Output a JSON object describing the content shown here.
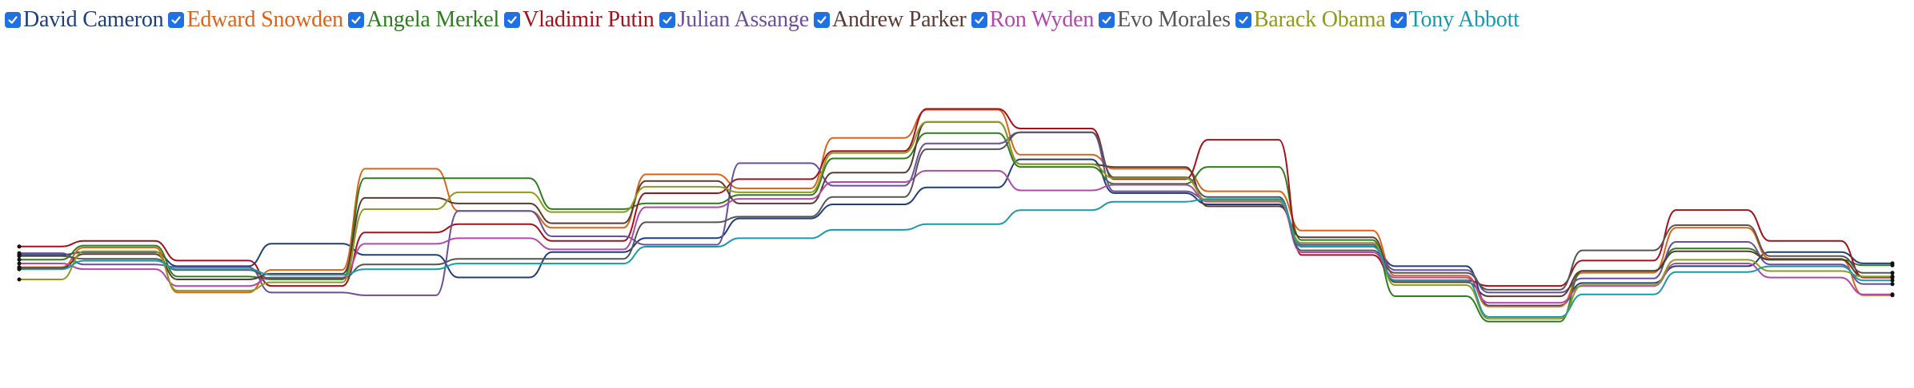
{
  "legend": {
    "items": [
      {
        "label": "David Cameron",
        "color": "#1f3f77",
        "checked": true
      },
      {
        "label": "Edward Snowden",
        "color": "#d9641a",
        "checked": true
      },
      {
        "label": "Angela Merkel",
        "color": "#2e7d1f",
        "checked": true
      },
      {
        "label": "Vladimir Putin",
        "color": "#a3121c",
        "checked": true
      },
      {
        "label": "Julian Assange",
        "color": "#6a4f9a",
        "checked": true
      },
      {
        "label": "Andrew Parker",
        "color": "#5a3a32",
        "checked": true
      },
      {
        "label": "Ron Wyden",
        "color": "#b04aa8",
        "checked": true
      },
      {
        "label": "Evo Morales",
        "color": "#555555",
        "checked": true
      },
      {
        "label": "Barack Obama",
        "color": "#8f9a1e",
        "checked": true
      },
      {
        "label": "Tony Abbott",
        "color": "#1a9aa8",
        "checked": true
      }
    ],
    "checkbox_color": "#1f6fe5"
  },
  "chart_data": {
    "type": "line",
    "x": [
      0,
      5,
      10,
      15,
      20,
      25,
      30,
      35,
      40,
      45,
      50,
      55,
      60,
      65,
      70,
      75,
      80,
      85,
      90,
      95,
      100
    ],
    "series": [
      {
        "name": "David Cameron",
        "values": [
          39,
          40,
          35,
          43,
          39,
          31,
          40,
          45,
          52,
          57,
          63,
          73,
          61,
          57,
          42,
          35,
          21,
          29,
          35,
          40,
          36
        ]
      },
      {
        "name": "Edward Snowden",
        "values": [
          35,
          42,
          26,
          34,
          70,
          55,
          49,
          68,
          63,
          81,
          91,
          75,
          70,
          62,
          48,
          32,
          21,
          33,
          49,
          38,
          25
        ]
      },
      {
        "name": "Angela Merkel",
        "values": [
          38,
          43,
          32,
          31,
          67,
          67,
          56,
          58,
          61,
          74,
          83,
          71,
          65,
          71,
          45,
          25,
          16,
          34,
          42,
          38,
          36
        ]
      },
      {
        "name": "Vladimir Putin",
        "values": [
          43,
          45,
          38,
          29,
          48,
          51,
          45,
          62,
          67,
          77,
          92,
          85,
          67,
          81,
          40,
          31,
          29,
          38,
          56,
          45,
          32
        ]
      },
      {
        "name": "Julian Assange",
        "values": [
          41,
          37,
          36,
          27,
          26,
          56,
          47,
          44,
          73,
          65,
          80,
          84,
          63,
          60,
          44,
          35,
          27,
          32,
          45,
          37,
          30
        ]
      },
      {
        "name": "Andrew Parker",
        "values": [
          36,
          41,
          32,
          34,
          61,
          59,
          52,
          67,
          59,
          70,
          88,
          73,
          72,
          58,
          47,
          31,
          26,
          35,
          42,
          39,
          33
        ]
      },
      {
        "name": "Ron Wyden",
        "values": [
          38,
          36,
          30,
          33,
          45,
          47,
          43,
          58,
          61,
          67,
          71,
          64,
          66,
          60,
          42,
          33,
          24,
          30,
          38,
          33,
          27
        ]
      },
      {
        "name": "Evo Morales",
        "values": [
          41,
          40,
          36,
          33,
          38,
          40,
          40,
          53,
          55,
          62,
          79,
          85,
          69,
          62,
          43,
          35,
          29,
          43,
          52,
          41,
          35
        ]
      },
      {
        "name": "Barack Obama",
        "values": [
          33,
          43,
          29,
          32,
          58,
          64,
          57,
          66,
          64,
          78,
          89,
          74,
          69,
          61,
          46,
          31,
          19,
          31,
          40,
          36,
          34
        ]
      },
      {
        "name": "Tony Abbott",
        "values": [
          37,
          40,
          37,
          35,
          37,
          39,
          39,
          45,
          48,
          51,
          53,
          58,
          61,
          62,
          45,
          33,
          20,
          28,
          36,
          38,
          33
        ]
      }
    ],
    "ylim": [
      0,
      100
    ],
    "grid": false,
    "legend": "top-left"
  }
}
